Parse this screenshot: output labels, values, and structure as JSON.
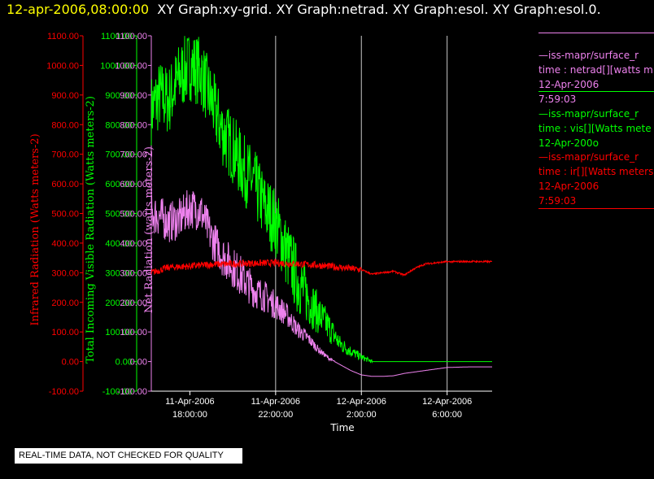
{
  "header": {
    "date": "12-apr-2006,08:00:00",
    "graphs": "XY Graph:xy-grid.  XY Graph:netrad.  XY Graph:esol.  XY Graph:esol.0."
  },
  "legend": [
    {
      "line1": "—iss-mapr/surface_r",
      "line2": "time : netrad[][watts m",
      "line3": "12-Apr-2006",
      "line4": "7:59:03",
      "color": "#ee82ee"
    },
    {
      "line1": "—iss-mapr/surface_r",
      "line2": "time : vis[][Watts mete",
      "line3": "12-Apr-200o",
      "line4": "",
      "color": "#00ff00"
    },
    {
      "line1": "—iss-mapr/surface_r",
      "line2": "time : ir[][Watts meters",
      "line3": "12-Apr-2006",
      "line4": "7:59:03",
      "color": "#ff0000"
    }
  ],
  "notice": "REAL-TIME DATA, NOT CHECKED FOR QUALITY",
  "chart_data": {
    "type": "line",
    "xlabel": "Time",
    "x_ticks": [
      {
        "date": "11-Apr-2006",
        "time": "18:00:00",
        "hours": 18
      },
      {
        "date": "11-Apr-2006",
        "time": "22:00:00",
        "hours": 22
      },
      {
        "date": "12-Apr-2006",
        "time": "2:00:00",
        "hours": 26
      },
      {
        "date": "12-Apr-2006",
        "time": "6:00:00",
        "hours": 30
      }
    ],
    "xlim_hours_since_11apr0000": [
      16.2,
      32.1
    ],
    "ylim": [
      -100,
      1100
    ],
    "y_ticks": [
      "1100.00",
      "1000.00",
      "900.00",
      "800.00",
      "700.00",
      "600.00",
      "500.00",
      "400.00",
      "300.00",
      "200.00",
      "100.00",
      "0.00",
      "-100.00"
    ],
    "grid_x": true,
    "grid_y": false,
    "axes": [
      {
        "label": "Infrared Radiation (Watts meters-2)",
        "color": "#ff0000"
      },
      {
        "label": "Total Incoming Visible Radiation (Watts meters-2)",
        "color": "#00ff00"
      },
      {
        "label": "Net Radiation (watts meters-2)",
        "color": "#ee82ee"
      }
    ],
    "series": [
      {
        "name": "ir",
        "color": "#ff0000",
        "x": [
          16.2,
          17,
          18,
          19,
          20,
          21,
          22,
          23,
          24,
          25,
          26,
          26.5,
          27,
          27.5,
          28,
          28.5,
          29,
          30,
          31,
          32.1
        ],
        "y": [
          300,
          318,
          322,
          328,
          330,
          332,
          333,
          330,
          325,
          318,
          310,
          295,
          300,
          305,
          292,
          315,
          330,
          337,
          338,
          337
        ],
        "noise": 12
      },
      {
        "name": "vis",
        "color": "#00ff00",
        "x": [
          16.2,
          16.6,
          17,
          17.5,
          18,
          18.5,
          19,
          19.5,
          20,
          20.5,
          21,
          21.5,
          22,
          22.5,
          23,
          23.5,
          24,
          24.5,
          25,
          25.5,
          26,
          26.5,
          27,
          28,
          29,
          30,
          31,
          32.1
        ],
        "y": [
          850,
          900,
          880,
          960,
          1000,
          980,
          880,
          780,
          720,
          650,
          600,
          520,
          470,
          370,
          280,
          215,
          160,
          115,
          60,
          35,
          15,
          0,
          0,
          0,
          0,
          0,
          0,
          0
        ],
        "noise": 120
      },
      {
        "name": "netrad",
        "color": "#ee82ee",
        "x": [
          16.2,
          16.6,
          17,
          17.5,
          18,
          18.5,
          19,
          19.5,
          20,
          20.5,
          21,
          21.5,
          22,
          22.5,
          23,
          23.5,
          24,
          24.5,
          25,
          25.5,
          26,
          26.5,
          27,
          27.5,
          28,
          29,
          30,
          31,
          32.1
        ],
        "y": [
          500,
          490,
          470,
          480,
          520,
          510,
          420,
          360,
          320,
          280,
          240,
          220,
          190,
          160,
          110,
          80,
          40,
          10,
          -10,
          -30,
          -45,
          -50,
          -50,
          -48,
          -40,
          -30,
          -20,
          -18,
          -18
        ],
        "noise": 70
      }
    ]
  }
}
